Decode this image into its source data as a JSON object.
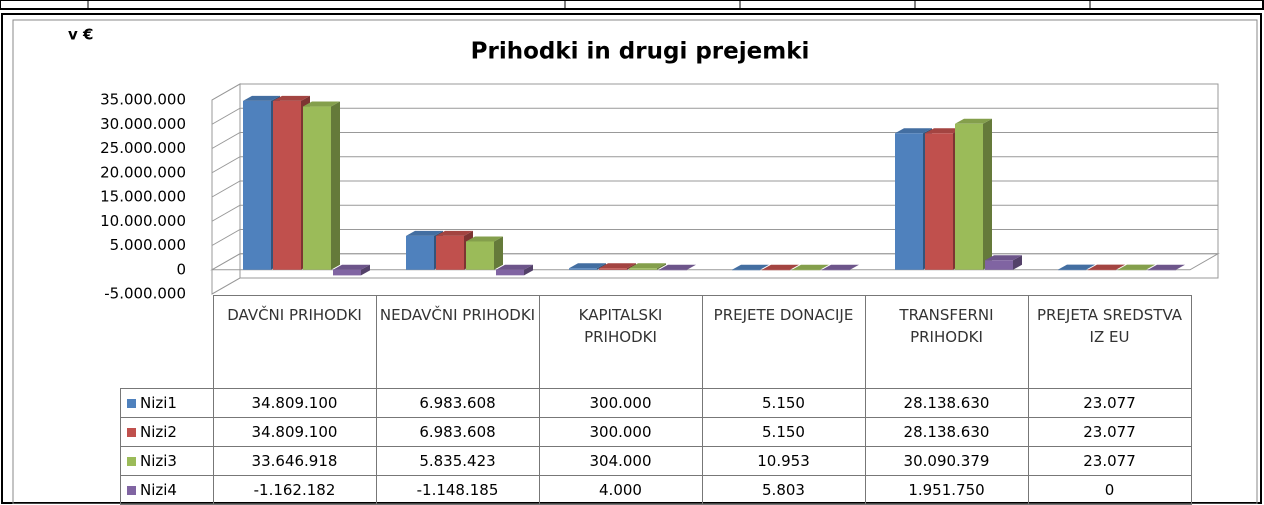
{
  "chart_data": {
    "type": "bar",
    "title": "Prihodki in drugi prejemki",
    "y_label": "v €",
    "categories": [
      "DAVČNI PRIHODKI",
      "NEDAVČNI PRIHODKI",
      "KAPITALSKI PRIHODKI",
      "PREJETE DONACIJE",
      "TRANSFERNI PRIHODKI",
      "PREJETA SREDSTVA IZ EU"
    ],
    "series": [
      {
        "name": "Nizi1",
        "color": "#4f81bd",
        "values": [
          34809100,
          6983608,
          300000,
          5150,
          28138630,
          23077
        ],
        "value_labels": [
          "34.809.100",
          "6.983.608",
          "300.000",
          "5.150",
          "28.138.630",
          "23.077"
        ]
      },
      {
        "name": "Nizi2",
        "color": "#c0504d",
        "values": [
          34809100,
          6983608,
          300000,
          5150,
          28138630,
          23077
        ],
        "value_labels": [
          "34.809.100",
          "6.983.608",
          "300.000",
          "5.150",
          "28.138.630",
          "23.077"
        ]
      },
      {
        "name": "Nizi3",
        "color": "#9bbb59",
        "values": [
          33646918,
          5835423,
          304000,
          10953,
          30090379,
          23077
        ],
        "value_labels": [
          "33.646.918",
          "5.835.423",
          "304.000",
          "10.953",
          "30.090.379",
          "23.077"
        ]
      },
      {
        "name": "Nizi4",
        "color": "#8064a2",
        "values": [
          -1162182,
          -1148185,
          4000,
          5803,
          1951750,
          0
        ],
        "value_labels": [
          "-1.162.182",
          "-1.148.185",
          "4.000",
          "5.803",
          "1.951.750",
          "0"
        ]
      }
    ],
    "ylim": [
      -5000000,
      35000000
    ],
    "yticks": [
      {
        "value": -5000000,
        "label": "-5.000.000"
      },
      0,
      {
        "value": 5000000,
        "label": "5.000.000"
      },
      {
        "value": 10000000,
        "label": "10.000.000"
      },
      {
        "value": 15000000,
        "label": "15.000.000"
      },
      {
        "value": 20000000,
        "label": "20.000.000"
      },
      {
        "value": 25000000,
        "label": "25.000.000"
      },
      {
        "value": 30000000,
        "label": "30.000.000"
      },
      {
        "value": 35000000,
        "label": "35.000.000"
      }
    ],
    "grid": true
  }
}
